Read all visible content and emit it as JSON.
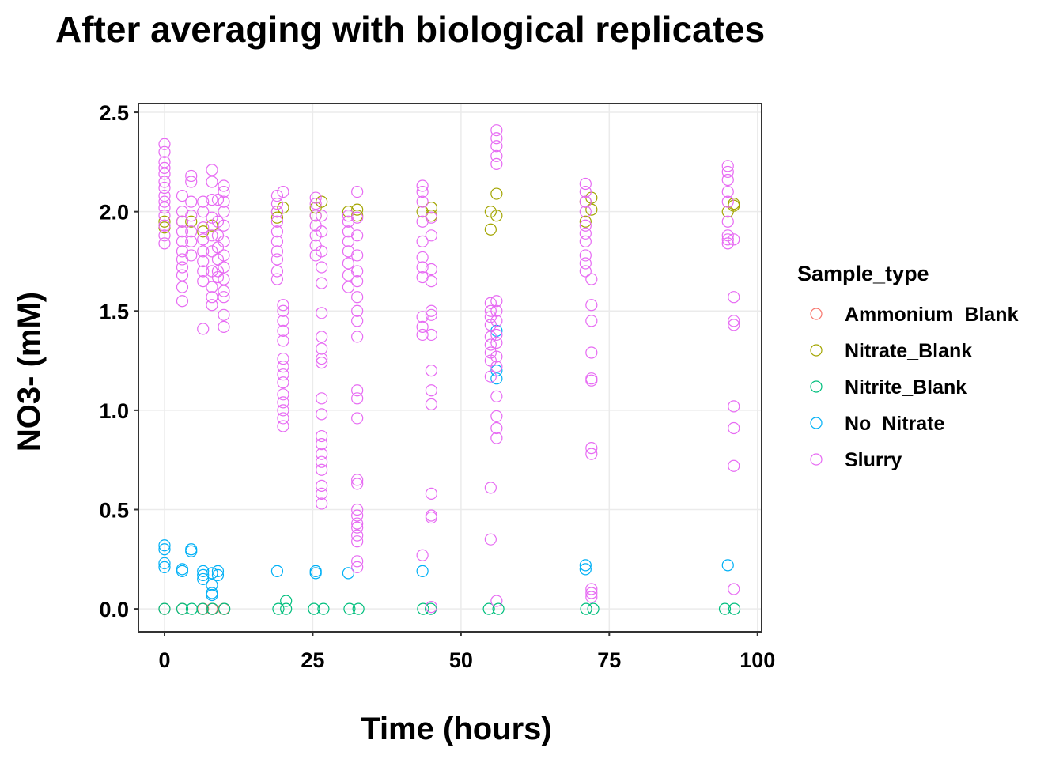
{
  "chart_data": {
    "type": "scatter",
    "title": "After averaging with biological replicates",
    "x_label": "Time (hours)",
    "y_label": "NO3- (mM)",
    "legend_title": "Sample_type",
    "xlim": [
      -4.4,
      100.7
    ],
    "ylim": [
      -0.115,
      2.544
    ],
    "xticks": [
      0,
      25,
      50,
      75,
      100
    ],
    "yticks": [
      {
        "value": 0,
        "label": "0.0"
      },
      {
        "value": 0.5,
        "label": "0.5"
      },
      {
        "value": 1,
        "label": "1.0"
      },
      {
        "value": 1.5,
        "label": "1.5"
      },
      {
        "value": 2,
        "label": "2.0"
      },
      {
        "value": 2.5,
        "label": "2.5"
      }
    ],
    "grid": true,
    "legend_position": "right",
    "series": [
      {
        "name": "Ammonium_Blank",
        "color": "#F8766D",
        "x": [
          0,
          3,
          6.5,
          8,
          10
        ],
        "values": [
          0,
          0,
          0,
          0,
          0
        ]
      },
      {
        "name": "Nitrate_Blank",
        "color": "#A3A500",
        "x": [
          0,
          0,
          3,
          4.5,
          6.5,
          8,
          19,
          19,
          20,
          25.5,
          25.5,
          26.5,
          31,
          32.5,
          32.5,
          43.5,
          45,
          45,
          55,
          55,
          56,
          56,
          71,
          71,
          72,
          72,
          95,
          96,
          96
        ],
        "values": [
          1.95,
          1.92,
          1.95,
          1.95,
          1.9,
          1.93,
          2.0,
          1.97,
          2.02,
          2.02,
          1.98,
          2.05,
          2.0,
          2.01,
          1.98,
          2.0,
          2.02,
          1.98,
          2.0,
          1.91,
          1.98,
          2.09,
          1.95,
          2.05,
          2.07,
          2.01,
          2.0,
          2.03,
          2.04
        ]
      },
      {
        "name": "Nitrite_Blank",
        "color": "#00BF7D",
        "x": [
          0,
          3,
          4.6,
          6.4,
          8.1,
          10.1,
          19.2,
          20.5,
          25.2,
          26.8,
          31.2,
          32.7,
          43.6,
          44.9,
          54.7,
          56.3,
          71.1,
          72.3,
          94.5,
          96.1,
          20.5
        ],
        "values": [
          0,
          0,
          0,
          0,
          0,
          0,
          0,
          0,
          0,
          0,
          0,
          0,
          0,
          0,
          0,
          0,
          0,
          0,
          0,
          0,
          0.04
        ]
      },
      {
        "name": "No_Nitrate",
        "color": "#00B0F6",
        "x": [
          0,
          0,
          0,
          0,
          3,
          3,
          4.5,
          4.5,
          6.5,
          6.5,
          6.5,
          8,
          8,
          8,
          8,
          9,
          9,
          19,
          25.5,
          25.5,
          31,
          43.5,
          56,
          56,
          56,
          71,
          71,
          95
        ],
        "values": [
          0.32,
          0.3,
          0.23,
          0.21,
          0.2,
          0.19,
          0.3,
          0.29,
          0.19,
          0.17,
          0.15,
          0.18,
          0.12,
          0.08,
          0.07,
          0.19,
          0.17,
          0.19,
          0.19,
          0.18,
          0.18,
          0.19,
          1.4,
          1.2,
          1.16,
          0.22,
          0.2,
          0.22
        ]
      },
      {
        "name": "Slurry",
        "color": "#E76BF3",
        "x": [
          0,
          0,
          0,
          0,
          0,
          0,
          0,
          0,
          0,
          0,
          0,
          0,
          0,
          0,
          3,
          3,
          3,
          3,
          3,
          3,
          3,
          3,
          3,
          3,
          3,
          4.5,
          4.5,
          4.5,
          4.5,
          4.5,
          4.5,
          4.5,
          6.5,
          6.5,
          6.5,
          6.5,
          6.5,
          6.5,
          6.5,
          6.5,
          6.5,
          8,
          8,
          8,
          8,
          8,
          8,
          8,
          8,
          8,
          8,
          9,
          9,
          9,
          9,
          9,
          9,
          9,
          10,
          10,
          10,
          10,
          10,
          10,
          10,
          10,
          10,
          10,
          10,
          10,
          10,
          19,
          19,
          19,
          19,
          19,
          19,
          19,
          19,
          19,
          19,
          20,
          20,
          20,
          20,
          20,
          20,
          20,
          20,
          20,
          20,
          20,
          20,
          20,
          20,
          20,
          25.5,
          25.5,
          25.5,
          25.5,
          25.5,
          25.5,
          25.5,
          26.5,
          26.5,
          26.5,
          26.5,
          26.5,
          26.5,
          26.5,
          26.5,
          26.5,
          26.5,
          26.5,
          26.5,
          26.5,
          26.5,
          26.5,
          26.5,
          26.5,
          26.5,
          26.5,
          26.5,
          31,
          31,
          31,
          31,
          31,
          31,
          31,
          31,
          32.5,
          32.5,
          32.5,
          32.5,
          32.5,
          32.5,
          32.5,
          32.5,
          32.5,
          32.5,
          32.5,
          32.5,
          32.5,
          32.5,
          32.5,
          32.5,
          32.5,
          32.5,
          32.5,
          32.5,
          32.5,
          32.5,
          32.5,
          43.5,
          43.5,
          43.5,
          43.5,
          43.5,
          43.5,
          43.5,
          43.5,
          43.5,
          43.5,
          43.5,
          43.5,
          45,
          45,
          45,
          45,
          45,
          45,
          45,
          45,
          45,
          45,
          45,
          45,
          45,
          45,
          55,
          55,
          55,
          55,
          55,
          55,
          55,
          55,
          55,
          55,
          55,
          56,
          56,
          56,
          56,
          56,
          56,
          56,
          56,
          56,
          56,
          56,
          56,
          56,
          56,
          56,
          56,
          56,
          71,
          71,
          71,
          71,
          71,
          71,
          71,
          71,
          71,
          71,
          72,
          72,
          72,
          72,
          72,
          72,
          72,
          72,
          72,
          72,
          72,
          95,
          95,
          95,
          95,
          95,
          95,
          95,
          95,
          95,
          96,
          96,
          96,
          96,
          96,
          96,
          96,
          96
        ],
        "values": [
          2.34,
          2.3,
          2.25,
          2.22,
          2.19,
          2.15,
          2.12,
          2.08,
          2.05,
          2.02,
          1.98,
          1.93,
          1.88,
          1.84,
          2.08,
          2.0,
          1.95,
          1.9,
          1.85,
          1.8,
          1.76,
          1.72,
          1.68,
          1.62,
          1.55,
          2.18,
          2.15,
          2.05,
          1.98,
          1.9,
          1.85,
          1.78,
          2.05,
          2.0,
          1.92,
          1.86,
          1.8,
          1.75,
          1.7,
          1.65,
          1.41,
          2.21,
          2.15,
          2.06,
          1.97,
          1.88,
          1.8,
          1.7,
          1.62,
          1.57,
          1.53,
          2.06,
          1.95,
          1.88,
          1.82,
          1.76,
          1.7,
          1.67,
          2.13,
          2.1,
          2.05,
          2.0,
          1.93,
          1.85,
          1.78,
          1.72,
          1.66,
          1.6,
          1.57,
          1.48,
          1.42,
          2.08,
          2.04,
          2.0,
          1.95,
          1.9,
          1.85,
          1.8,
          1.76,
          1.7,
          1.66,
          2.1,
          1.53,
          1.5,
          1.45,
          1.4,
          1.35,
          1.26,
          1.22,
          1.18,
          1.14,
          1.08,
          1.04,
          1.0,
          0.96,
          0.92,
          2.07,
          2.04,
          1.98,
          1.93,
          1.88,
          1.83,
          1.78,
          1.98,
          1.9,
          1.8,
          1.72,
          1.64,
          1.49,
          1.37,
          1.31,
          1.26,
          1.24,
          1.06,
          0.98,
          0.87,
          0.83,
          0.78,
          0.74,
          0.7,
          0.62,
          0.58,
          0.53,
          1.98,
          1.95,
          1.9,
          1.85,
          1.8,
          1.74,
          1.68,
          1.62,
          2.1,
          1.97,
          1.88,
          1.78,
          1.7,
          1.65,
          1.57,
          1.5,
          1.45,
          1.37,
          1.1,
          1.06,
          0.96,
          0.65,
          0.63,
          0.5,
          0.47,
          0.43,
          0.41,
          0.37,
          0.34,
          0.24,
          0.21,
          2.13,
          2.1,
          2.05,
          1.95,
          1.85,
          1.77,
          1.72,
          1.67,
          1.47,
          1.42,
          1.38,
          0.27,
          1.97,
          1.88,
          1.71,
          1.65,
          1.5,
          1.48,
          1.38,
          1.2,
          1.1,
          1.03,
          0.58,
          0.47,
          0.46,
          0.01,
          1.54,
          1.5,
          1.47,
          1.43,
          1.37,
          1.33,
          1.29,
          1.25,
          1.17,
          0.61,
          0.35,
          2.41,
          2.37,
          2.33,
          2.28,
          2.24,
          1.55,
          1.5,
          1.45,
          1.38,
          1.34,
          1.27,
          1.22,
          1.07,
          0.97,
          0.91,
          0.86,
          0.04,
          2.14,
          2.1,
          2.05,
          2.0,
          1.93,
          1.89,
          1.85,
          1.78,
          1.74,
          1.7,
          1.66,
          1.53,
          1.45,
          1.29,
          1.16,
          1.15,
          0.81,
          0.78,
          0.1,
          0.08,
          0.06,
          2.23,
          2.2,
          2.16,
          2.1,
          2.05,
          1.95,
          1.88,
          1.86,
          1.84,
          1.86,
          1.57,
          1.45,
          1.43,
          1.02,
          0.91,
          0.72,
          0.1
        ]
      }
    ]
  }
}
